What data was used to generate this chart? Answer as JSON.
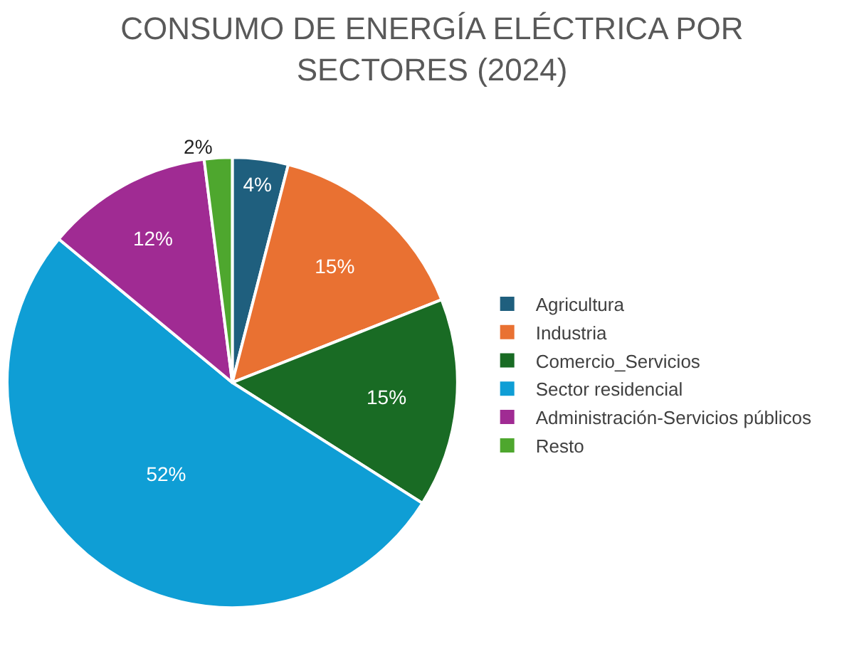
{
  "chart_data": {
    "type": "pie",
    "title": "CONSUMO DE ENERGÍA ELÉCTRICA POR SECTORES (2024)",
    "categories": [
      "Agricultura",
      "Industria",
      "Comercio_Servicios",
      "Sector residencial",
      "Administración-Servicios públicos",
      "Resto"
    ],
    "values": [
      4,
      15,
      15,
      52,
      12,
      2
    ],
    "value_labels": [
      "4%",
      "15%",
      "15%",
      "52%",
      "12%",
      "2%"
    ],
    "colors": [
      "#1f5f7e",
      "#e97132",
      "#196b24",
      "#0f9ed5",
      "#a02b93",
      "#4ea72e"
    ],
    "legend": "right"
  }
}
